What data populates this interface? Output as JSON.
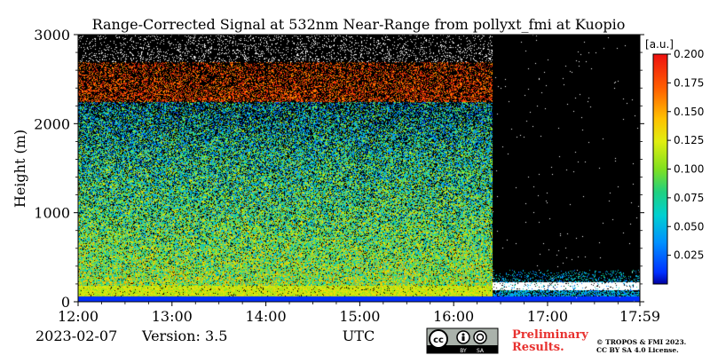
{
  "chart_data": {
    "type": "heatmap",
    "title": "Range-Corrected Signal at 532nm Near-Range from pollyxt_fmi at Kuopio",
    "ylabel": "Height (m)",
    "xlabel": "UTC",
    "x_ticks": [
      "12:00",
      "13:00",
      "14:00",
      "15:00",
      "16:00",
      "17:00",
      "17:59"
    ],
    "y_ticks": [
      "0",
      "1000",
      "2000",
      "3000"
    ],
    "xlim": [
      "12:00",
      "17:59"
    ],
    "ylim": [
      0,
      3000
    ],
    "colorbar": {
      "unit": "[a.u.]",
      "ticks": [
        "0.025",
        "0.050",
        "0.075",
        "0.100",
        "0.125",
        "0.150",
        "0.175",
        "0.200"
      ],
      "range": [
        0.0,
        0.2
      ],
      "colormap": "jet"
    }
  },
  "footer": {
    "date": "2023-02-07",
    "version": "Version: 3.5",
    "preliminary_line1": "Preliminary",
    "preliminary_line2": "Results.",
    "copyright_line1": "© TROPOS & FMI 2023.",
    "copyright_line2": "CC BY SA 4.0 License.",
    "license_badge": "cc-by-sa-badge",
    "license_by": "BY",
    "license_sa": "SA"
  },
  "colors": {
    "preliminary": "#e8312f",
    "plot_background": "#000000"
  }
}
